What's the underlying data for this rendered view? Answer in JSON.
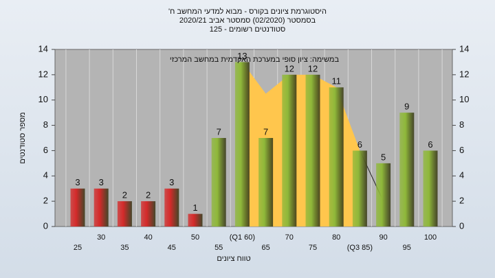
{
  "chart_data": {
    "type": "bar",
    "title": "'היסטוגרמת ציונים בקורס - מבוא למדעי המחשב ח",
    "subtitle": [
      "בסמסטר (02/2020) סמסטר אביב 2020/21",
      "סטודנטים רשומים - 125"
    ],
    "annotation": "במשימה: ציון סופי במערכת האקדמית במחשב המרכזי",
    "x_label": "טווח ציונים",
    "y_label": "מספר סטודנטים",
    "categories": [
      "25",
      "30",
      "35",
      "40",
      "45",
      "50",
      "55",
      "(Q1 60)",
      "65",
      "70",
      "75",
      "80",
      "(Q3 85)",
      "90",
      "95",
      "100"
    ],
    "values": [
      3,
      3,
      2,
      2,
      3,
      1,
      7,
      13,
      7,
      12,
      12,
      11,
      6,
      5,
      9,
      6
    ],
    "colors": [
      "#d42a2a",
      "#d42a2a",
      "#d42a2a",
      "#d42a2a",
      "#d42a2a",
      "#d42a2a",
      "#8fb83a",
      "#8fb83a",
      "#8fb83a",
      "#8fb83a",
      "#8fb83a",
      "#8fb83a",
      "#8fb83a",
      "#8fb83a",
      "#8fb83a",
      "#8fb83a"
    ],
    "overlay": [
      {
        "type": "area",
        "color": "#ffc64d",
        "values": [
          null,
          null,
          null,
          null,
          null,
          null,
          null,
          13,
          10.5,
          12,
          12,
          11,
          6,
          null,
          null,
          null
        ]
      },
      {
        "type": "line",
        "color": "#222222",
        "values": [
          null,
          null,
          null,
          null,
          null,
          null,
          null,
          null,
          null,
          null,
          null,
          null,
          6,
          2,
          null,
          null
        ]
      }
    ],
    "ylim": [
      0,
      14
    ],
    "yticks": [
      0,
      2,
      4,
      6,
      8,
      10,
      12,
      14
    ],
    "y2lim": [
      0,
      14
    ],
    "y2ticks": [
      0,
      2,
      4,
      6,
      8,
      10,
      12,
      14
    ]
  }
}
